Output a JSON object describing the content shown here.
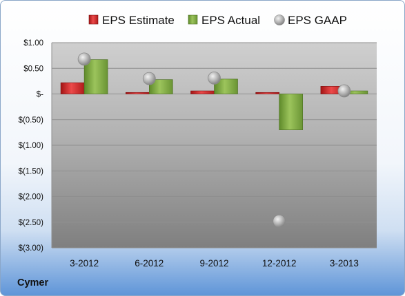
{
  "company": "Cymer",
  "colors": {
    "estimate": "#d42a2a",
    "actual": "#84b04a",
    "gaap": "#a9a9a9"
  },
  "chart_data": {
    "type": "bar",
    "title": "",
    "xlabel": "",
    "ylabel": "",
    "categories": [
      "3-2012",
      "6-2012",
      "9-2012",
      "12-2012",
      "3-2013"
    ],
    "series": [
      {
        "name": "EPS Estimate",
        "type": "bar",
        "values": [
          0.22,
          0.03,
          0.06,
          0.03,
          0.15
        ]
      },
      {
        "name": "EPS Actual",
        "type": "bar",
        "values": [
          0.67,
          0.28,
          0.29,
          -0.7,
          0.06
        ]
      },
      {
        "name": "EPS GAAP",
        "type": "scatter",
        "values": [
          0.68,
          0.3,
          0.31,
          -2.48,
          0.06
        ]
      }
    ],
    "ylim": [
      -3.0,
      1.0
    ],
    "yticks": [
      1.0,
      0.5,
      0.0,
      -0.5,
      -1.0,
      -1.5,
      -2.0,
      -2.5,
      -3.0
    ],
    "ytick_labels": [
      "$1.00",
      "$0.50",
      "$-",
      "$(0.50)",
      "$(1.00)",
      "$(1.50)",
      "$(2.00)",
      "$(2.50)",
      "$(3.00)"
    ],
    "grid": true,
    "legend_position": "top"
  }
}
